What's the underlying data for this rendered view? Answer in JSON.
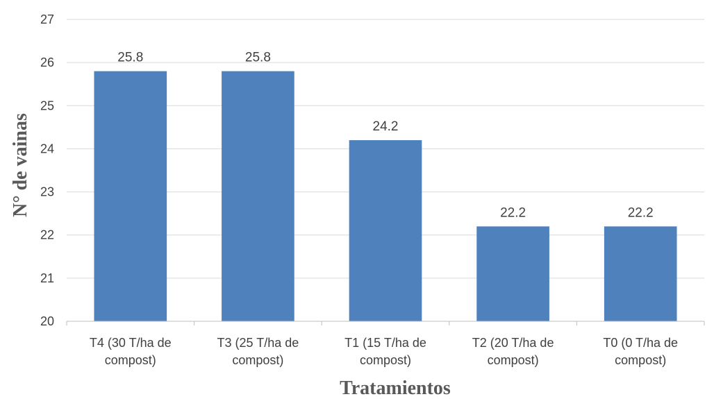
{
  "chart_data": {
    "type": "bar",
    "title": "",
    "xlabel": "Tratamientos",
    "ylabel": "N° de vainas",
    "categories": [
      [
        "T4 (30 T/ha de",
        "compost)"
      ],
      [
        "T3 (25 T/ha de",
        "compost)"
      ],
      [
        "T1 (15 T/ha de",
        "compost)"
      ],
      [
        "T2 (20 T/ha de",
        "compost)"
      ],
      [
        "T0 (0 T/ha de",
        "compost)"
      ]
    ],
    "values": [
      25.8,
      25.8,
      24.2,
      22.2,
      22.2
    ],
    "data_labels": [
      "25.8",
      "25.8",
      "24.2",
      "22.2",
      "22.2"
    ],
    "ylim": [
      20,
      27
    ],
    "yticks": [
      "20",
      "21",
      "22",
      "23",
      "24",
      "25",
      "26",
      "27"
    ],
    "grid": true,
    "legend": "none",
    "colors": {
      "bar": "#4F81BD",
      "grid": "#D9D9D9",
      "axis": "#BFBFBF",
      "text": "#404040",
      "axis_title": "#595959"
    }
  }
}
